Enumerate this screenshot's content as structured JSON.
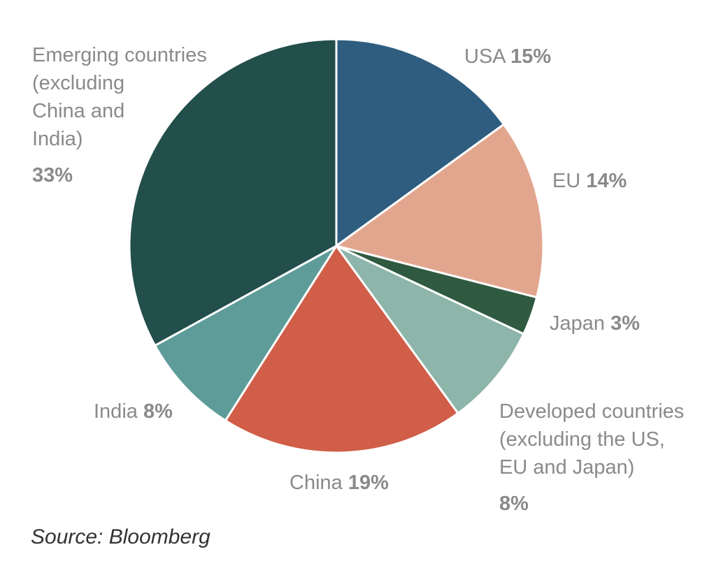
{
  "chart_data": {
    "type": "pie",
    "title": "",
    "slices": [
      {
        "name": "USA",
        "value": 15,
        "value_label": "15%",
        "color": "#2f5d7f",
        "label_lines": [
          "USA"
        ]
      },
      {
        "name": "EU",
        "value": 14,
        "value_label": "14%",
        "color": "#e2a68e",
        "label_lines": [
          "EU"
        ]
      },
      {
        "name": "Japan",
        "value": 3,
        "value_label": "3%",
        "color": "#2f5a40",
        "label_lines": [
          "Japan"
        ]
      },
      {
        "name": "Developed countries (excluding the US, EU and Japan)",
        "value": 8,
        "value_label": "8%",
        "color": "#8db5aa",
        "label_lines": [
          "Developed countries",
          "(excluding the US,",
          "EU and Japan)"
        ]
      },
      {
        "name": "China",
        "value": 19,
        "value_label": "19%",
        "color": "#d05e48",
        "label_lines": [
          "China"
        ]
      },
      {
        "name": "India",
        "value": 8,
        "value_label": "8%",
        "color": "#5e9c99",
        "label_lines": [
          "India"
        ]
      },
      {
        "name": "Emerging countries (excluding China and India)",
        "value": 33,
        "value_label": "33%",
        "color": "#224e4b",
        "label_lines": [
          "Emerging countries",
          "(excluding",
          "China and",
          "India)"
        ]
      }
    ],
    "start_angle": "12 o'clock",
    "direction": "clockwise",
    "legend": "none",
    "source": "Source: Bloomberg"
  }
}
